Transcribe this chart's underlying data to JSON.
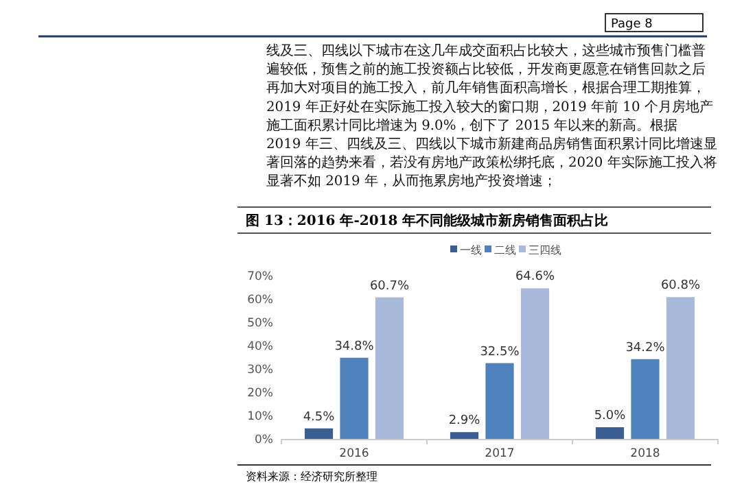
{
  "chart_data": {
    "type": "bar",
    "title": "图 13：2016 年-2018 年不同能级城市新房销售面积占比",
    "categories": [
      "2016",
      "2017",
      "2018"
    ],
    "series": [
      {
        "name": "一线",
        "color": "#3b5e92",
        "values": [
          4.5,
          2.9,
          5.0
        ]
      },
      {
        "name": "二线",
        "color": "#4f81bd",
        "values": [
          34.8,
          32.5,
          34.2
        ]
      },
      {
        "name": "三四线",
        "color": "#a9b9d9",
        "values": [
          60.7,
          64.6,
          60.8
        ]
      }
    ],
    "ylim": [
      0,
      70
    ],
    "yticks": [
      {
        "value": 0,
        "label": "0%"
      },
      {
        "value": 10,
        "label": "10%"
      },
      {
        "value": 20,
        "label": "20%"
      },
      {
        "value": 30,
        "label": "30%"
      },
      {
        "value": 40,
        "label": "40%"
      },
      {
        "value": 50,
        "label": "50%"
      },
      {
        "value": 60,
        "label": "60%"
      },
      {
        "value": 70,
        "label": "70%"
      }
    ],
    "value_labels": [
      [
        "4.5%",
        "2.9%",
        "5.0%"
      ],
      [
        "34.8%",
        "32.5%",
        "34.2%"
      ],
      [
        "60.7%",
        "64.6%",
        "60.8%"
      ]
    ],
    "legend": "top",
    "grid": false,
    "annotations": [
      "Page 8",
      "线及三、四线以下城市在这几年成交面积占比较大，这些城市预售门槛普遍较低，预售之前的施工投资额占比较低，开发商更愿意在销售回款之后再加大对项目的施工投入，前几年销售面积高增长，根据合理工期推算，2019 年正好处在实际施工投入较大的窗口期，2019 年前 10 个月房地产施工面积累计同比增速为 9.0%，创下了 2015 年以来的新高。根据 2019 年三、四线及三、四线以下城市新建商品房销售面积累计同比增速显著回落的趋势来看，若没有房地产政策松绑托底，2020 年实际施工投入将显著不如 2019 年，从而拖累房地产投资增速；",
      "资料来源：经济研究所整理"
    ]
  }
}
